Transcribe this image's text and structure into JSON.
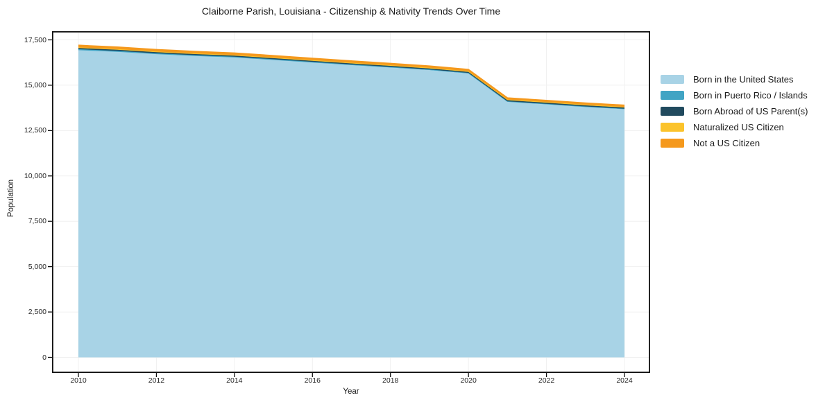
{
  "chart": {
    "title": "Claiborne Parish, Louisiana - Citizenship & Nativity Trends Over Time",
    "xlabel": "Year",
    "ylabel": "Population"
  },
  "chart_data": {
    "type": "area",
    "stacked": true,
    "title": "Claiborne Parish, Louisiana - Citizenship & Nativity Trends Over Time",
    "xlabel": "Year",
    "ylabel": "Population",
    "grid": true,
    "legend_position": "right",
    "xlim": [
      2010,
      2024
    ],
    "ylim": [
      0,
      17500
    ],
    "yticks": [
      0,
      2500,
      5000,
      7500,
      10000,
      12500,
      15000,
      17500
    ],
    "xticks": [
      2010,
      2012,
      2014,
      2016,
      2018,
      2020,
      2022,
      2024
    ],
    "x": [
      2010,
      2011,
      2012,
      2013,
      2014,
      2015,
      2016,
      2017,
      2018,
      2019,
      2020,
      2021,
      2022,
      2023,
      2024
    ],
    "series": [
      {
        "name": "Born in the United States",
        "color": "#a8d3e6",
        "values": [
          16930,
          16840,
          16710,
          16610,
          16530,
          16390,
          16250,
          16110,
          15975,
          15840,
          15650,
          14090,
          13950,
          13810,
          13690
        ]
      },
      {
        "name": "Born in Puerto Rico / Islands",
        "color": "#41a4c4",
        "values": [
          60,
          55,
          50,
          50,
          45,
          45,
          40,
          35,
          35,
          30,
          30,
          25,
          25,
          20,
          20
        ]
      },
      {
        "name": "Born Abroad of US Parent(s)",
        "color": "#214a5e",
        "values": [
          60,
          60,
          60,
          55,
          55,
          55,
          55,
          55,
          55,
          55,
          55,
          60,
          60,
          60,
          60
        ]
      },
      {
        "name": "Naturalized US Citizen",
        "color": "#fbc32c",
        "values": [
          40,
          40,
          40,
          40,
          40,
          40,
          40,
          40,
          40,
          40,
          40,
          40,
          40,
          40,
          40
        ]
      },
      {
        "name": "Not a US Citizen",
        "color": "#f5991d",
        "values": [
          115,
          110,
          110,
          110,
          105,
          105,
          100,
          100,
          100,
          95,
          95,
          90,
          90,
          90,
          90
        ]
      }
    ],
    "axis_color": "#111111",
    "gridline_color": "#f0f0f0",
    "tick_label_color": "#262626"
  }
}
